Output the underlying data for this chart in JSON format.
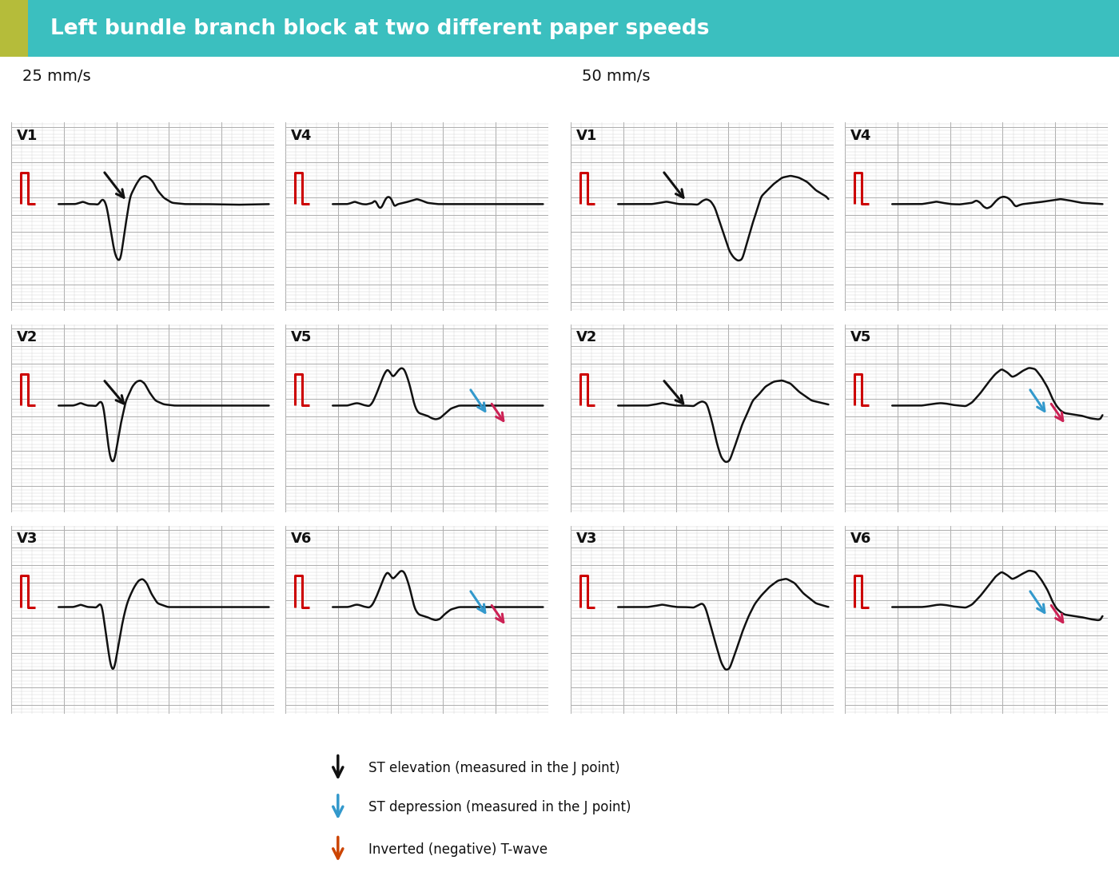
{
  "title": "Left bundle branch block at two different paper speeds",
  "title_bg": "#3bbfbf",
  "title_accent": "#b5bc3a",
  "title_text_color": "#ffffff",
  "grid_minor_color": "#d0d0d0",
  "grid_major_color": "#b0b0b0",
  "grid_bg": "#f8f8f8",
  "ecg_color": "#111111",
  "red_cal_color": "#cc0000",
  "speed25_label": "25 mm/s",
  "speed50_label": "50 mm/s",
  "legend_items": [
    {
      "color": "#111111",
      "text": "ST elevation (measured in the J point)"
    },
    {
      "color": "#3399cc",
      "text": "ST depression (measured in the J point)"
    },
    {
      "color": "#cc4400",
      "text": "Inverted (negative) T-wave"
    }
  ]
}
